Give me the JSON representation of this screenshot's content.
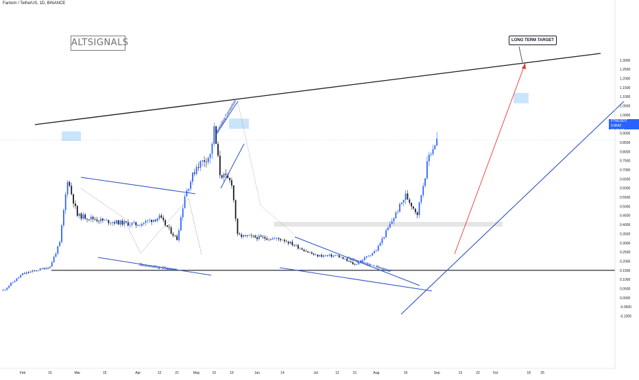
{
  "header": {
    "symbol_line": "Fantom / TetherUS, 1D, BINANCE"
  },
  "watermark": {
    "logo_text": "ALTSIGNALS"
  },
  "annotations": {
    "long_term_target": "LONG TERM TARGET",
    "ascending_correction": "Ascending Correction",
    "descending_channel": "Descending Channel",
    "falling_wedge": "Falling Wedge = Reversal"
  },
  "price_badge": {
    "symbol": "FTMUSDT",
    "price": "0.8642",
    "countdown": "05:09:13"
  },
  "colors": {
    "up_candle": "#2962ff",
    "down_candle": "#131722",
    "trendline_blue": "#2a4fbf",
    "resistance_black": "#131722",
    "projection_red": "#e53935",
    "highlight_box": "#bbdefb",
    "zone_gray": "#e0e0e0"
  },
  "chart_data": {
    "type": "candlestick",
    "title": "",
    "xlabel": "",
    "ylabel": "",
    "ylim": [
      -0.15,
      1.35
    ],
    "grid": false,
    "y_tick_labels": [
      "1.3000",
      "1.2500",
      "1.2000",
      "1.1500",
      "1.1000",
      "1.0500",
      "1.0000",
      "0.9500",
      "0.9000",
      "0.8500",
      "0.8000",
      "0.7500",
      "0.7000",
      "0.6500",
      "0.6000",
      "0.5500",
      "0.5000",
      "0.4500",
      "0.4000",
      "0.3500",
      "0.3000",
      "0.2500",
      "0.2000",
      "0.1500",
      "0.1000",
      "0.0500",
      "0.0000",
      "-0.0500",
      "-0.1000"
    ],
    "y_tick_values": [
      1.3,
      1.25,
      1.2,
      1.15,
      1.1,
      1.05,
      1.0,
      0.95,
      0.9,
      0.85,
      0.8,
      0.75,
      0.7,
      0.65,
      0.6,
      0.55,
      0.5,
      0.45,
      0.4,
      0.35,
      0.3,
      0.25,
      0.2,
      0.15,
      0.1,
      0.05,
      0.0,
      -0.05,
      -0.1
    ],
    "x_axis": {
      "start": "2021-01-22",
      "end": "2021-10-28",
      "ticks": [
        {
          "label": "Feb",
          "date": "2021-02-01"
        },
        {
          "label": "15",
          "date": "2021-02-15"
        },
        {
          "label": "Mar",
          "date": "2021-03-01"
        },
        {
          "label": "15",
          "date": "2021-03-15"
        },
        {
          "label": "Apr",
          "date": "2021-04-01"
        },
        {
          "label": "12",
          "date": "2021-04-12"
        },
        {
          "label": "21",
          "date": "2021-04-21"
        },
        {
          "label": "May",
          "date": "2021-05-01"
        },
        {
          "label": "10",
          "date": "2021-05-10"
        },
        {
          "label": "19",
          "date": "2021-05-19"
        },
        {
          "label": "Jun",
          "date": "2021-06-01"
        },
        {
          "label": "14",
          "date": "2021-06-14"
        },
        {
          "label": "Jul",
          "date": "2021-07-01"
        },
        {
          "label": "12",
          "date": "2021-07-12"
        },
        {
          "label": "21",
          "date": "2021-07-21"
        },
        {
          "label": "Aug",
          "date": "2021-08-01"
        },
        {
          "label": "16",
          "date": "2021-08-16"
        },
        {
          "label": "Sep",
          "date": "2021-09-01"
        },
        {
          "label": "13",
          "date": "2021-09-13"
        },
        {
          "label": "22",
          "date": "2021-09-22"
        },
        {
          "label": "Oct",
          "date": "2021-10-01"
        },
        {
          "label": "18",
          "date": "2021-10-18"
        },
        {
          "label": "25",
          "date": "2021-10-25"
        }
      ]
    },
    "series": [
      {
        "date": "2021-01-22",
        "close": 0.04
      },
      {
        "date": "2021-02-01",
        "close": 0.13
      },
      {
        "date": "2021-02-15",
        "close": 0.17
      },
      {
        "date": "2021-02-20",
        "close": 0.3
      },
      {
        "date": "2021-02-24",
        "close": 0.65
      },
      {
        "date": "2021-03-01",
        "close": 0.45
      },
      {
        "date": "2021-03-15",
        "close": 0.42
      },
      {
        "date": "2021-04-01",
        "close": 0.4
      },
      {
        "date": "2021-04-12",
        "close": 0.44
      },
      {
        "date": "2021-04-21",
        "close": 0.32
      },
      {
        "date": "2021-04-25",
        "close": 0.56
      },
      {
        "date": "2021-05-01",
        "close": 0.72
      },
      {
        "date": "2021-05-08",
        "close": 0.78
      },
      {
        "date": "2021-05-10",
        "close": 0.92
      },
      {
        "date": "2021-05-13",
        "close": 0.68
      },
      {
        "date": "2021-05-19",
        "close": 0.63
      },
      {
        "date": "2021-05-22",
        "close": 0.34
      },
      {
        "date": "2021-06-01",
        "close": 0.33
      },
      {
        "date": "2021-06-14",
        "close": 0.32
      },
      {
        "date": "2021-07-01",
        "close": 0.23
      },
      {
        "date": "2021-07-12",
        "close": 0.23
      },
      {
        "date": "2021-07-21",
        "close": 0.18
      },
      {
        "date": "2021-08-01",
        "close": 0.26
      },
      {
        "date": "2021-08-16",
        "close": 0.56
      },
      {
        "date": "2021-08-22",
        "close": 0.46
      },
      {
        "date": "2021-08-28",
        "close": 0.78
      },
      {
        "date": "2021-09-01",
        "close": 0.8642
      }
    ],
    "levels": {
      "support": 0.15,
      "resistance_zone": 0.41,
      "current_price": 0.8642,
      "long_term_target": 1.1
    }
  }
}
